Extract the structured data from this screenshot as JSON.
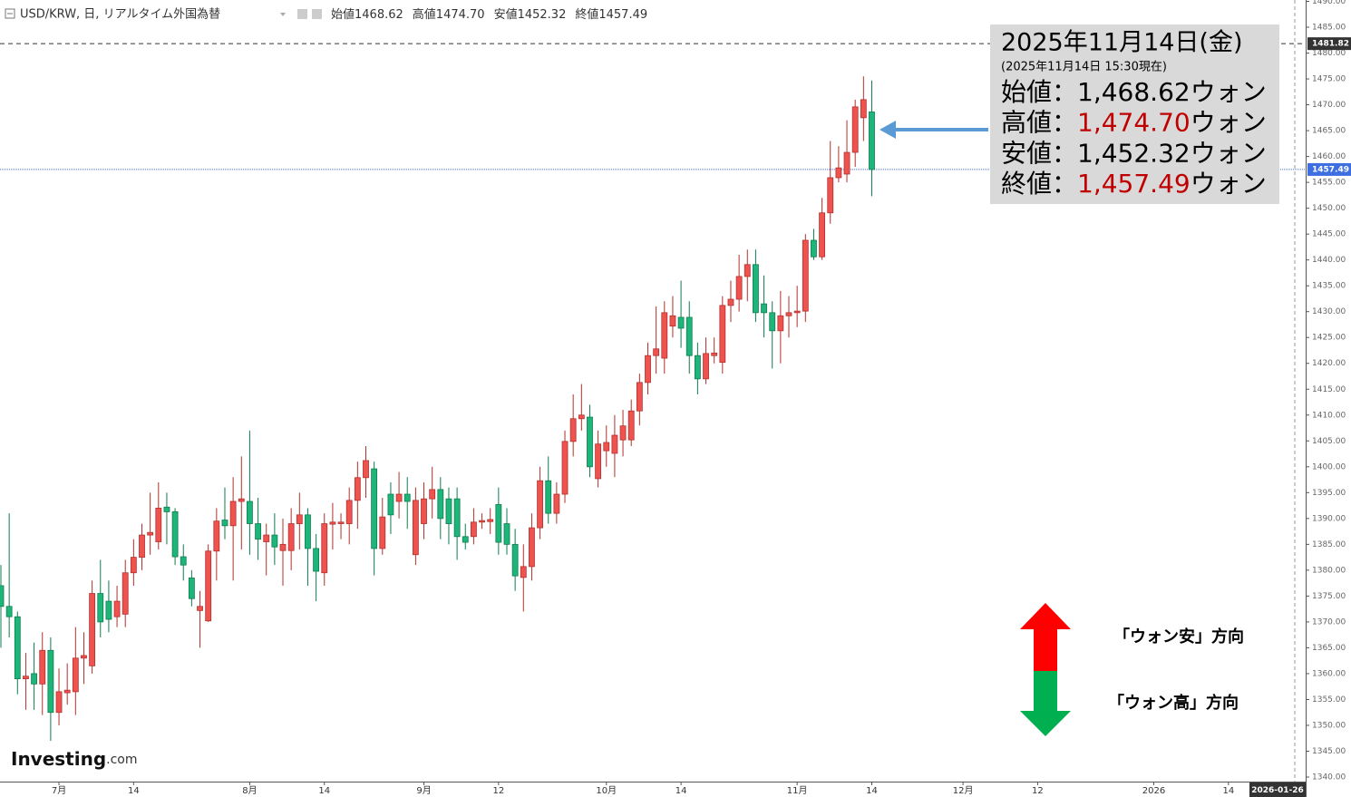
{
  "header": {
    "symbol": "USD/KRW, 日, リアルタイム外国為替",
    "stats": [
      {
        "label": "始値",
        "value": "1468.62"
      },
      {
        "label": "高値",
        "value": "1474.70"
      },
      {
        "label": "安値",
        "value": "1452.32"
      },
      {
        "label": "終値",
        "value": "1457.49"
      }
    ]
  },
  "chart_data": {
    "type": "candlestick",
    "x": [
      "2025-06-20",
      "2025-06-23",
      "2025-06-24",
      "2025-06-25",
      "2025-06-26",
      "2025-06-27",
      "2025-06-30",
      "2025-07-01",
      "2025-07-02",
      "2025-07-03",
      "2025-07-04",
      "2025-07-07",
      "2025-07-08",
      "2025-07-09",
      "2025-07-10",
      "2025-07-11",
      "2025-07-14",
      "2025-07-15",
      "2025-07-16",
      "2025-07-17",
      "2025-07-18",
      "2025-07-21",
      "2025-07-22",
      "2025-07-23",
      "2025-07-24",
      "2025-07-25",
      "2025-07-28",
      "2025-07-29",
      "2025-07-30",
      "2025-07-31",
      "2025-08-01",
      "2025-08-04",
      "2025-08-05",
      "2025-08-06",
      "2025-08-07",
      "2025-08-08",
      "2025-08-11",
      "2025-08-12",
      "2025-08-13",
      "2025-08-14",
      "2025-08-15",
      "2025-08-18",
      "2025-08-19",
      "2025-08-20",
      "2025-08-21",
      "2025-08-22",
      "2025-08-25",
      "2025-08-26",
      "2025-08-27",
      "2025-08-28",
      "2025-08-29",
      "2025-09-01",
      "2025-09-02",
      "2025-09-03",
      "2025-09-04",
      "2025-09-05",
      "2025-09-08",
      "2025-09-09",
      "2025-09-10",
      "2025-09-11",
      "2025-09-12",
      "2025-09-15",
      "2025-09-16",
      "2025-09-17",
      "2025-09-18",
      "2025-09-19",
      "2025-09-22",
      "2025-09-23",
      "2025-09-24",
      "2025-09-25",
      "2025-09-26",
      "2025-09-29",
      "2025-09-30",
      "2025-10-01",
      "2025-10-02",
      "2025-10-03",
      "2025-10-06",
      "2025-10-07",
      "2025-10-08",
      "2025-10-09",
      "2025-10-10",
      "2025-10-13",
      "2025-10-14",
      "2025-10-15",
      "2025-10-16",
      "2025-10-17",
      "2025-10-20",
      "2025-10-21",
      "2025-10-22",
      "2025-10-23",
      "2025-10-24",
      "2025-10-27",
      "2025-10-28",
      "2025-10-29",
      "2025-10-30",
      "2025-10-31",
      "2025-11-03",
      "2025-11-04",
      "2025-11-05",
      "2025-11-06",
      "2025-11-07",
      "2025-11-10",
      "2025-11-11",
      "2025-11-12",
      "2025-11-13",
      "2025-11-14"
    ],
    "open": [
      1377,
      1373,
      1371,
      1359,
      1360,
      1358,
      1364.5,
      1352.5,
      1356.3,
      1356.5,
      1363,
      1361.5,
      1375.5,
      1374,
      1371,
      1371.5,
      1379.5,
      1382.5,
      1386.8,
      1385.5,
      1392.2,
      1391.3,
      1382.6,
      1378.5,
      1372.2,
      1370.2,
      1383.7,
      1389.7,
      1388.6,
      1393.3,
      1393.3,
      1389,
      1385.5,
      1386.8,
      1383.8,
      1383.8,
      1389,
      1390.7,
      1384.2,
      1379.5,
      1388.9,
      1389,
      1389,
      1393.5,
      1397.9,
      1399.6,
      1384.2,
      1394.7,
      1393.3,
      1394.7,
      1383,
      1389,
      1393.8,
      1395.6,
      1393.8,
      1393.8,
      1386.5,
      1386.5,
      1389.3,
      1389.4,
      1392.7,
      1389,
      1385,
      1378.6,
      1380.7,
      1388.2,
      1397.3,
      1391,
      1394.7,
      1404.9,
      1409.3,
      1409.6,
      1397.7,
      1403.1,
      1402.6,
      1405.2,
      1405.2,
      1410.8,
      1416.3,
      1421.5,
      1421,
      1427.2,
      1428.9,
      1428.9,
      1421.5,
      1417,
      1421.5,
      1420.2,
      1431.2,
      1432.4,
      1436.8,
      1439.1,
      1431.5,
      1429.8,
      1426.3,
      1429.2,
      1429.8,
      1430.1,
      1443.8,
      1440.6,
      1449.1,
      1455.9,
      1456.6,
      1460.8,
      1467.5,
      1468.62
    ],
    "high": [
      1381,
      1391,
      1372,
      1364,
      1366,
      1368,
      1367,
      1361,
      1362,
      1369,
      1368,
      1378,
      1382,
      1378,
      1377,
      1382,
      1386,
      1389,
      1395,
      1397,
      1395,
      1392,
      1385,
      1380,
      1376,
      1385,
      1392,
      1396,
      1398,
      1402,
      1407,
      1394,
      1389,
      1391,
      1390,
      1392,
      1395,
      1392,
      1387,
      1391,
      1393,
      1391,
      1396,
      1401,
      1404,
      1401,
      1394,
      1397,
      1399,
      1398,
      1396,
      1397,
      1400,
      1398,
      1396,
      1396,
      1389,
      1392,
      1391,
      1392,
      1396,
      1392,
      1388,
      1385,
      1391,
      1400,
      1402,
      1397,
      1407,
      1414,
      1416,
      1412,
      1407,
      1408,
      1410,
      1411,
      1413,
      1418,
      1424,
      1431,
      1432,
      1433,
      1436,
      1432,
      1424,
      1425,
      1425,
      1433,
      1436,
      1441,
      1442,
      1442,
      1437,
      1432,
      1434,
      1433,
      1435,
      1445,
      1446,
      1452,
      1463,
      1462,
      1467,
      1471,
      1475.5,
      1474.7
    ],
    "low": [
      1365,
      1367,
      1356,
      1353,
      1353,
      1352,
      1347,
      1350,
      1354,
      1352,
      1358,
      1360,
      1367,
      1368,
      1369,
      1369,
      1377,
      1380,
      1383,
      1384,
      1385,
      1381,
      1378,
      1373,
      1365,
      1370,
      1378,
      1386,
      1378,
      1384,
      1383,
      1382,
      1379,
      1381,
      1377,
      1380,
      1384,
      1377,
      1374,
      1377,
      1384,
      1386,
      1385,
      1388,
      1394,
      1379,
      1383,
      1387,
      1390,
      1388,
      1381,
      1386,
      1390,
      1386,
      1385,
      1382,
      1384,
      1385,
      1388,
      1387,
      1383,
      1383,
      1376,
      1372,
      1378,
      1386,
      1389,
      1389,
      1393,
      1402,
      1407,
      1398,
      1396,
      1400,
      1398,
      1402,
      1404,
      1408,
      1414,
      1418,
      1418,
      1425,
      1423,
      1418,
      1414,
      1416,
      1420,
      1418,
      1428,
      1430,
      1432,
      1428,
      1425,
      1419,
      1420,
      1425,
      1427,
      1428,
      1440,
      1440,
      1447,
      1455,
      1455,
      1458,
      1463,
      1452.32
    ],
    "close": [
      1373,
      1371,
      1359,
      1359.5,
      1358,
      1364.5,
      1352.5,
      1356.5,
      1356.8,
      1363,
      1363.5,
      1375.5,
      1370,
      1370.5,
      1374,
      1379.5,
      1382.5,
      1386.8,
      1387.3,
      1392,
      1391.3,
      1382.6,
      1381,
      1374.5,
      1373,
      1383.7,
      1389.5,
      1388.6,
      1393.3,
      1393.8,
      1389,
      1386,
      1386.8,
      1384.5,
      1385,
      1389,
      1390.7,
      1384.2,
      1379.8,
      1389,
      1389.3,
      1389.3,
      1393.5,
      1397.9,
      1401.2,
      1384.2,
      1390.3,
      1390.7,
      1394.7,
      1393.3,
      1393.5,
      1393.8,
      1395.6,
      1390,
      1389,
      1386.5,
      1385.4,
      1389.3,
      1389.6,
      1389.8,
      1385.4,
      1385,
      1378.9,
      1380.7,
      1388.2,
      1397.3,
      1391,
      1394.7,
      1404.9,
      1409.3,
      1410,
      1400,
      1404.4,
      1404.7,
      1406.1,
      1407.9,
      1410.8,
      1416.3,
      1421.5,
      1422.8,
      1429.8,
      1429.2,
      1426.8,
      1421.5,
      1417,
      1421.9,
      1422,
      1431.2,
      1432.4,
      1436.8,
      1439.1,
      1429.8,
      1429.8,
      1426.3,
      1429.2,
      1429.8,
      1430.1,
      1443.8,
      1440.6,
      1449.1,
      1455.9,
      1457.8,
      1460.8,
      1469.6,
      1471,
      1457.49
    ],
    "up_color": "#ef5350",
    "down_color": "#1db57a",
    "xlim": [
      "2025-06-20",
      "2026-01-26"
    ],
    "xticks": [
      {
        "value": "2025-07-01",
        "label": "7月"
      },
      {
        "value": "2025-07-14",
        "label": "14"
      },
      {
        "value": "2025-08-01",
        "label": "8月"
      },
      {
        "value": "2025-08-14",
        "label": "14"
      },
      {
        "value": "2025-09-01",
        "label": "9月"
      },
      {
        "value": "2025-09-12",
        "label": "12"
      },
      {
        "value": "2025-10-01",
        "label": "10月"
      },
      {
        "value": "2025-10-14",
        "label": "14"
      },
      {
        "value": "2025-11-03",
        "label": "11月"
      },
      {
        "value": "2025-11-14",
        "label": "14"
      },
      {
        "value": "2025-12-01",
        "label": "12月"
      },
      {
        "value": "2025-12-12",
        "label": "12"
      },
      {
        "value": "2026-01-01",
        "label": "2026"
      },
      {
        "value": "2026-01-14",
        "label": "14"
      }
    ],
    "ylim": [
      1340,
      1490
    ],
    "yticks": [
      {
        "value": 1340,
        "label": "1340.00"
      },
      {
        "value": 1345,
        "label": "1345.00"
      },
      {
        "value": 1350,
        "label": "1350.00"
      },
      {
        "value": 1355,
        "label": "1355.00"
      },
      {
        "value": 1360,
        "label": "1360.00"
      },
      {
        "value": 1365,
        "label": "1365.00"
      },
      {
        "value": 1370,
        "label": "1370.00"
      },
      {
        "value": 1375,
        "label": "1375.00"
      },
      {
        "value": 1380,
        "label": "1380.00"
      },
      {
        "value": 1385,
        "label": "1385.00"
      },
      {
        "value": 1390,
        "label": "1390.00"
      },
      {
        "value": 1395,
        "label": "1395.00"
      },
      {
        "value": 1400,
        "label": "1400.00"
      },
      {
        "value": 1405,
        "label": "1405.00"
      },
      {
        "value": 1410,
        "label": "1410.00"
      },
      {
        "value": 1415,
        "label": "1415.00"
      },
      {
        "value": 1420,
        "label": "1420.00"
      },
      {
        "value": 1425,
        "label": "1425.00"
      },
      {
        "value": 1430,
        "label": "1430.00"
      },
      {
        "value": 1435,
        "label": "1435.00"
      },
      {
        "value": 1440,
        "label": "1440.00"
      },
      {
        "value": 1445,
        "label": "1445.00"
      },
      {
        "value": 1450,
        "label": "1450.00"
      },
      {
        "value": 1455,
        "label": "1455.00"
      },
      {
        "value": 1460,
        "label": "1460.00"
      },
      {
        "value": 1465,
        "label": "1465.00"
      },
      {
        "value": 1470,
        "label": "1470.00"
      },
      {
        "value": 1475,
        "label": "1475.00"
      },
      {
        "value": 1480,
        "label": "1480.00"
      },
      {
        "value": 1485,
        "label": "1485.00"
      },
      {
        "value": 1490,
        "label": "1490.00"
      }
    ],
    "price_lines": [
      {
        "value": 1481.82,
        "color": "#333333"
      },
      {
        "value": 1457.49,
        "color": "#3d6fe0"
      }
    ]
  },
  "annotation": {
    "title": "2025年11月14日(金)",
    "subtitle": "(2025年11月14日 15:30現在)",
    "rows": [
      {
        "label": "始値：",
        "value_label": "1,468.62",
        "unit": "ウォン",
        "color": "#000000"
      },
      {
        "label": "高値：",
        "value_label": "1,474.70",
        "unit": "ウォン",
        "color": "#c00000"
      },
      {
        "label": "安値：",
        "value_label": "1,452.32",
        "unit": "ウォン",
        "color": "#000000"
      },
      {
        "label": "終値：",
        "value_label": "1,457.49",
        "unit": "ウォン",
        "color": "#c00000"
      }
    ]
  },
  "direction": {
    "up": "「ウォン安」方向",
    "down": "「ウォン高」方向"
  },
  "logo": {
    "name": "Investing",
    "suffix": ".com"
  }
}
